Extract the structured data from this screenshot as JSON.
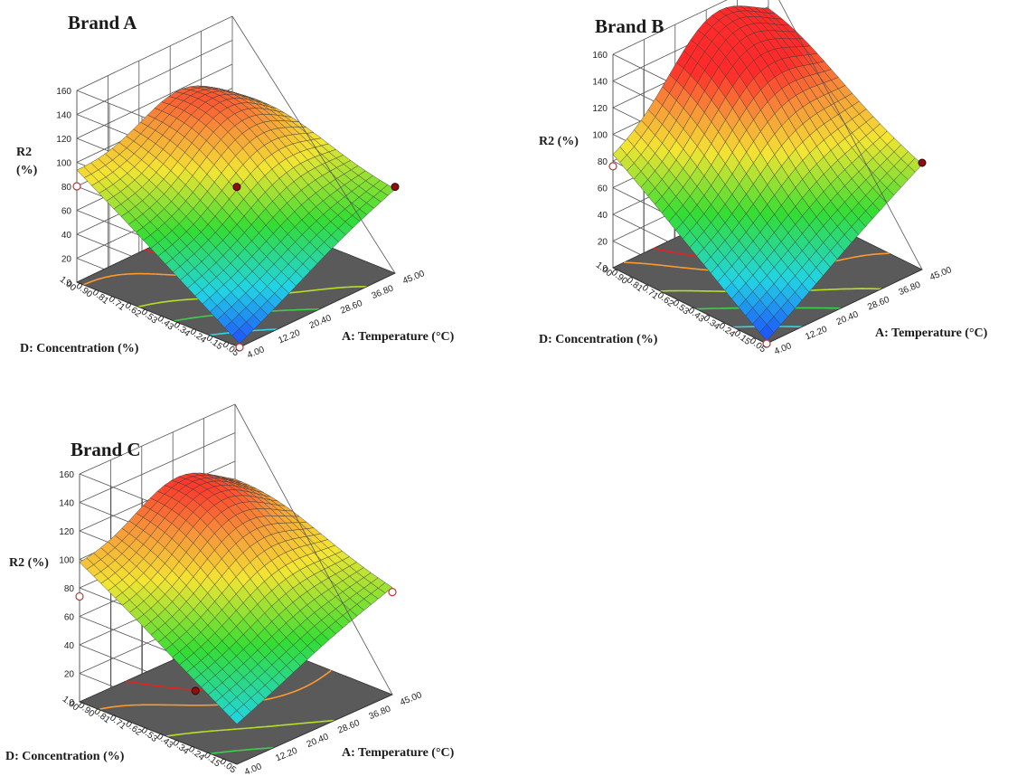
{
  "chart_data": [
    {
      "type": "surface",
      "title": "Brand A",
      "zlabel": "R2 (%)",
      "zlabel_lines": [
        "R2",
        "(%)"
      ],
      "xlabel": "A: Temperature (°C)",
      "ylabel": "D: Concentration (%)",
      "z_ticks": [
        "160",
        "140",
        "120",
        "100",
        "80",
        "60",
        "40",
        "20",
        "0"
      ],
      "x_ticks": [
        "4.00",
        "12.20",
        "20.40",
        "28.60",
        "36.80",
        "45.00"
      ],
      "y_ticks": [
        "0.05",
        "0.15",
        "0.24",
        "0.34",
        "0.43",
        "0.53",
        "0.62",
        "0.71",
        "0.81",
        "0.90",
        "1.00"
      ],
      "xlim": [
        4,
        45
      ],
      "ylim": [
        0.05,
        1.0
      ],
      "zlim": [
        0,
        160
      ],
      "corners": {
        "low_conc_low_temp": 3,
        "high_conc_low_temp": 92,
        "high_conc_high_temp": 78,
        "low_conc_high_temp": 68
      },
      "peak": {
        "temperature": 32,
        "concentration": 0.78,
        "r2": 120
      },
      "design_points": [
        {
          "temperature": 4.0,
          "concentration": 1.0,
          "r2": 80,
          "style": "open"
        },
        {
          "temperature": 24.5,
          "concentration": 0.52,
          "r2": 76,
          "style": "dark"
        },
        {
          "temperature": 45.0,
          "concentration": 0.05,
          "r2": 72,
          "style": "dark"
        },
        {
          "temperature": 4.0,
          "concentration": 0.05,
          "r2": 0,
          "style": "open"
        }
      ],
      "colors": {
        "low": "#1e3cff",
        "mid": "#33dd33",
        "high": "#ff2a2a"
      }
    },
    {
      "type": "surface",
      "title": "Brand B",
      "zlabel": "R2 (%)",
      "zlabel_lines": [
        "R2 (%)"
      ],
      "xlabel": "A: Temperature (°C)",
      "ylabel": "D: Concentration (%)",
      "z_ticks": [
        "160",
        "140",
        "120",
        "100",
        "80",
        "60",
        "40",
        "20",
        "0"
      ],
      "x_ticks": [
        "4.00",
        "12.20",
        "20.40",
        "28.60",
        "36.80",
        "45.00"
      ],
      "y_ticks": [
        "0.05",
        "0.15",
        "0.24",
        "0.34",
        "0.43",
        "0.53",
        "0.62",
        "0.71",
        "0.81",
        "0.90",
        "1.00"
      ],
      "xlim": [
        4,
        45
      ],
      "ylim": [
        0.05,
        1.0
      ],
      "zlim": [
        0,
        160
      ],
      "corners": {
        "low_conc_low_temp": 2,
        "high_conc_low_temp": 82,
        "high_conc_high_temp": 120,
        "low_conc_high_temp": 78
      },
      "peak": {
        "temperature": 30,
        "concentration": 0.9,
        "r2": 150
      },
      "design_points": [
        {
          "temperature": 4.0,
          "concentration": 1.0,
          "r2": 76,
          "style": "open"
        },
        {
          "temperature": 45.0,
          "concentration": 0.05,
          "r2": 80,
          "style": "dark"
        },
        {
          "temperature": 4.0,
          "concentration": 0.05,
          "r2": 0,
          "style": "open"
        }
      ],
      "colors": {
        "low": "#1e3cff",
        "mid": "#33dd33",
        "high": "#ff2a2a"
      }
    },
    {
      "type": "surface",
      "title": "Brand C",
      "zlabel": "R2 (%)",
      "zlabel_lines": [
        "R2 (%)"
      ],
      "xlabel": "A: Temperature (°C)",
      "ylabel": "D: Concentration (%)",
      "z_ticks": [
        "160",
        "140",
        "120",
        "100",
        "80",
        "60",
        "40",
        "20",
        "0"
      ],
      "x_ticks": [
        "4.00",
        "12.20",
        "20.40",
        "28.60",
        "36.80",
        "45.00"
      ],
      "y_ticks": [
        "0.05",
        "0.15",
        "0.24",
        "0.34",
        "0.43",
        "0.53",
        "0.62",
        "0.71",
        "0.81",
        "0.90",
        "1.00"
      ],
      "xlim": [
        4,
        45
      ],
      "ylim": [
        0.05,
        1.0
      ],
      "zlim": [
        0,
        160
      ],
      "corners": {
        "low_conc_low_temp": 28,
        "high_conc_low_temp": 96,
        "high_conc_high_temp": 95,
        "low_conc_high_temp": 74
      },
      "peak": {
        "temperature": 30,
        "concentration": 0.8,
        "r2": 125
      },
      "design_points": [
        {
          "temperature": 4.0,
          "concentration": 1.0,
          "r2": 74,
          "style": "open"
        },
        {
          "temperature": 4.0,
          "concentration": 0.3,
          "r2": 40,
          "style": "dark"
        },
        {
          "temperature": 45.0,
          "concentration": 0.05,
          "r2": 72,
          "style": "open"
        }
      ],
      "colors": {
        "low": "#1e3cff",
        "mid": "#33dd33",
        "high": "#ff2a2a"
      }
    }
  ]
}
